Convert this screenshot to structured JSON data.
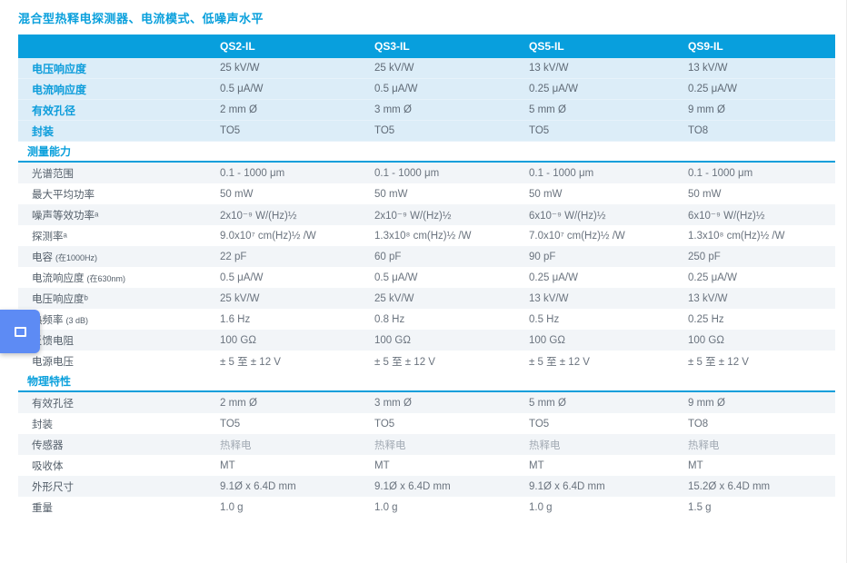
{
  "page_title": "混合型热释电探测器、电流模式、低噪声水平",
  "floating_tab": {
    "icon": "square-outline-icon"
  },
  "table": {
    "columns": [
      "QS2-IL",
      "QS3-IL",
      "QS5-IL",
      "QS9-IL"
    ],
    "summary_rows": [
      {
        "label": "电压响应度",
        "note": "",
        "values": [
          "25 kV/W",
          "25 kV/W",
          "13 kV/W",
          "13 kV/W"
        ]
      },
      {
        "label": "电流响应度",
        "note": "",
        "values": [
          "0.5 μA/W",
          "0.5 μA/W",
          "0.25 μA/W",
          "0.25 μA/W"
        ]
      },
      {
        "label": "有效孔径",
        "note": "",
        "values": [
          "2 mm Ø",
          "3 mm Ø",
          "5 mm Ø",
          "9 mm Ø"
        ]
      },
      {
        "label": "封装",
        "note": "",
        "values": [
          "TO5",
          "TO5",
          "TO5",
          "TO8"
        ]
      }
    ],
    "sections": [
      {
        "title": "测量能力",
        "rows": [
          {
            "label": "光谱范围",
            "note": "",
            "values": [
              "0.1 - 1000 μm",
              "0.1 - 1000 μm",
              "0.1 - 1000 μm",
              "0.1 - 1000 μm"
            ]
          },
          {
            "label": "最大平均功率",
            "note": "",
            "values": [
              "50 mW",
              "50 mW",
              "50 mW",
              "50 mW"
            ]
          },
          {
            "label": "噪声等效功率ᵃ",
            "note": "",
            "values": [
              "2x10⁻⁹ W/(Hz)½",
              "2x10⁻⁹ W/(Hz)½",
              "6x10⁻⁹ W/(Hz)½",
              "6x10⁻⁹ W/(Hz)½"
            ]
          },
          {
            "label": "探测率ᵃ",
            "note": "",
            "values": [
              "9.0x10⁷ cm(Hz)½ /W",
              "1.3x10⁸ cm(Hz)½ /W",
              "7.0x10⁷ cm(Hz)½ /W",
              "1.3x10⁸ cm(Hz)½ /W"
            ]
          },
          {
            "label": "电容",
            "note": "(在1000Hz)",
            "values": [
              "22 pF",
              "60 pF",
              "90 pF",
              "250 pF"
            ]
          },
          {
            "label": "电流响应度",
            "note": "(在630nm)",
            "values": [
              "0.5 μA/W",
              "0.5 μA/W",
              "0.25 μA/W",
              "0.25 μA/W"
            ]
          },
          {
            "label": "电压响应度ᵇ",
            "note": "",
            "values": [
              "25 kV/W",
              "25 kV/W",
              "13 kV/W",
              "13 kV/W"
            ]
          },
          {
            "label": "热频率",
            "note": "(3 dB)",
            "values": [
              "1.6 Hz",
              "0.8 Hz",
              "0.5 Hz",
              "0.25 Hz"
            ]
          },
          {
            "label": "反馈电阻",
            "note": "",
            "values": [
              "100 GΩ",
              "100 GΩ",
              "100 GΩ",
              "100 GΩ"
            ]
          },
          {
            "label": "电源电压",
            "note": "",
            "values": [
              "± 5 至 ± 12 V",
              "± 5 至 ± 12 V",
              "± 5 至 ± 12 V",
              "± 5 至 ± 12 V"
            ]
          }
        ]
      },
      {
        "title": "物理特性",
        "rows": [
          {
            "label": "有效孔径",
            "note": "",
            "values": [
              "2 mm Ø",
              "3 mm Ø",
              "5 mm Ø",
              "9 mm Ø"
            ]
          },
          {
            "label": "封装",
            "note": "",
            "values": [
              "TO5",
              "TO5",
              "TO5",
              "TO8"
            ]
          },
          {
            "label": "传感器",
            "note": "",
            "dim": true,
            "values": [
              "热释电",
              "热释电",
              "热释电",
              "热释电"
            ]
          },
          {
            "label": "吸收体",
            "note": "",
            "values": [
              "MT",
              "MT",
              "MT",
              "MT"
            ]
          },
          {
            "label": "外形尺寸",
            "note": "",
            "values": [
              "9.1Ø x 6.4D mm",
              "9.1Ø x 6.4D mm",
              "9.1Ø x 6.4D mm",
              "15.2Ø x 6.4D mm"
            ]
          },
          {
            "label": "重量",
            "note": "",
            "values": [
              "1.0 g",
              "1.0 g",
              "1.0 g",
              "1.5 g"
            ]
          }
        ]
      }
    ]
  }
}
